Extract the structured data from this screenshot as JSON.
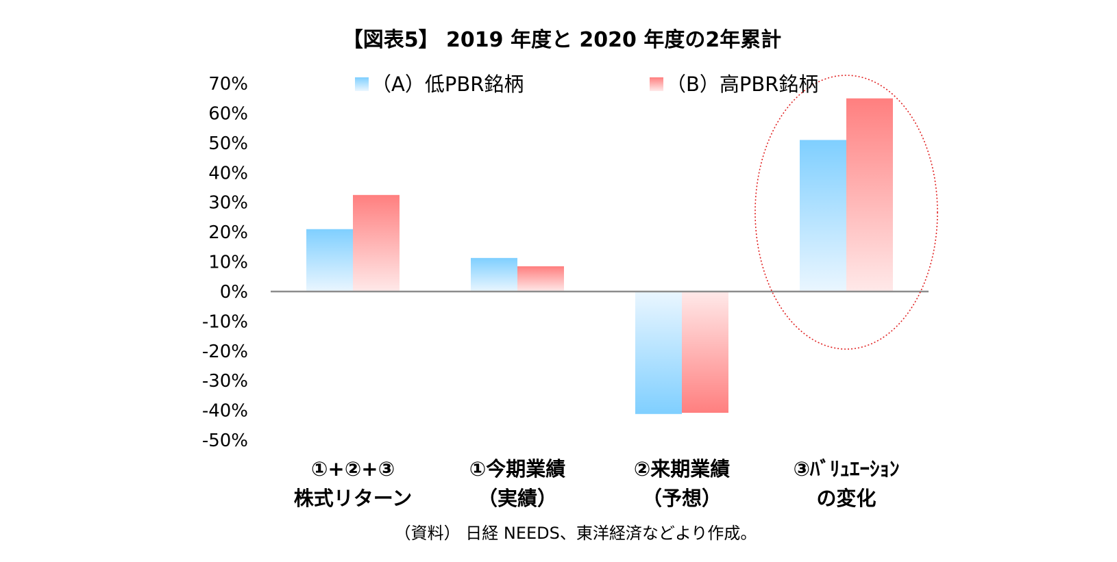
{
  "chart_data": {
    "type": "bar",
    "title": "【図表5】 2019 年度と 2020 年度の2年累計",
    "categories": [
      [
        "①+②+③",
        "株式リターン"
      ],
      [
        "①今期業績",
        "（実績）"
      ],
      [
        "②来期業績",
        "（予想）"
      ],
      [
        "③ﾊﾞﾘｭｴｰｼｮﾝ",
        "の変化"
      ]
    ],
    "series": [
      {
        "name": "（A）低PBR銘柄",
        "values": [
          21,
          11.3,
          -41.2,
          51
        ],
        "color": "#7fcfff"
      },
      {
        "name": "（B）高PBR銘柄",
        "values": [
          32.5,
          8.5,
          -40.8,
          65
        ],
        "color": "#ff7f7f"
      }
    ],
    "ylim": [
      -50,
      70
    ],
    "yticks": [
      "70%",
      "60%",
      "50%",
      "40%",
      "30%",
      "20%",
      "10%",
      "0%",
      "-10%",
      "-20%",
      "-30%",
      "-40%",
      "-50%"
    ],
    "ytick_values": [
      70,
      60,
      50,
      40,
      30,
      20,
      10,
      0,
      -10,
      -20,
      -30,
      -40,
      -50
    ],
    "legend_position": "top",
    "highlight": {
      "category_index": 3,
      "shape": "dotted-ellipse",
      "color": "#e02020"
    },
    "grid": false
  },
  "source_note": "（資料） 日経 NEEDS、東洋経済などより作成。"
}
